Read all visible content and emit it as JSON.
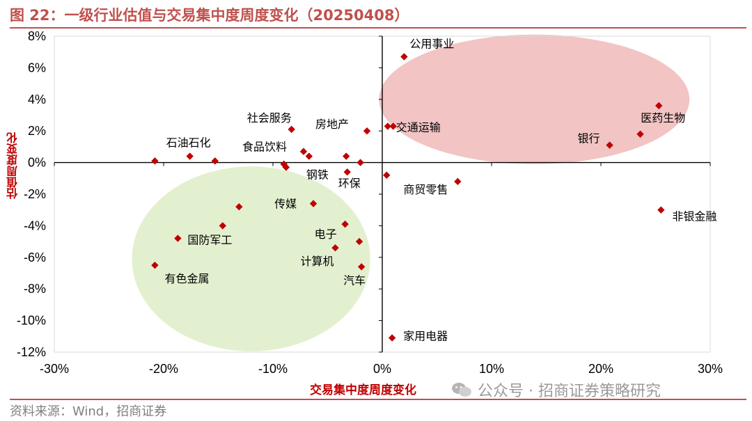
{
  "header": {
    "title": "图 22：一级行业估值与交易集中度周度变化（20250408）",
    "title_color": "#c0504d",
    "rule_color": "#c0504d"
  },
  "footer": {
    "source": "资料来源：Wind，招商证券",
    "watermark_text": "公众号 · 招商证券策略研究",
    "watermark_icon": "wechat-icon"
  },
  "chart_data": {
    "type": "scatter",
    "xlabel": "交易集中度周度变化",
    "ylabel": "估值周度变化",
    "xlim": [
      -0.3,
      0.3
    ],
    "ylim": [
      -0.12,
      0.08
    ],
    "x_ticks": [
      -0.3,
      -0.2,
      -0.1,
      0,
      0.1,
      0.2,
      0.3
    ],
    "x_tick_labels": [
      "-30%",
      "-20%",
      "-10%",
      "0%",
      "10%",
      "20%",
      "30%"
    ],
    "y_ticks": [
      0.08,
      0.06,
      0.04,
      0.02,
      0,
      -0.02,
      -0.04,
      -0.06,
      -0.08,
      -0.1,
      -0.12
    ],
    "y_tick_labels": [
      "8%",
      "6%",
      "4%",
      "2%",
      "0%",
      "-2%",
      "-4%",
      "-6%",
      "-8%",
      "-10%",
      "-12%"
    ],
    "grid": false,
    "legend": "none",
    "marker_color": "#c00000",
    "label_color_axis": "#c00000",
    "highlight_regions": [
      {
        "name": "upper-right-cluster",
        "color": "#f2c4c4",
        "center": [
          0.139,
          0.04
        ],
        "radius": [
          0.142,
          0.041
        ]
      },
      {
        "name": "lower-left-cluster",
        "color": "#e3f0cf",
        "center": [
          -0.12,
          -0.061
        ],
        "radius": [
          0.109,
          0.0585
        ]
      }
    ],
    "points": [
      {
        "x": 0.02,
        "y": 0.067,
        "label": "公用事业"
      },
      {
        "x": 0.253,
        "y": 0.036,
        "label": "医药生物"
      },
      {
        "x": 0.236,
        "y": 0.018,
        "label": ""
      },
      {
        "x": 0.208,
        "y": 0.011,
        "label": "银行"
      },
      {
        "x": 0.255,
        "y": -0.03,
        "label": "非银金融"
      },
      {
        "x": 0.005,
        "y": 0.023,
        "label": ""
      },
      {
        "x": 0.01,
        "y": 0.023,
        "label": "交通运输"
      },
      {
        "x": -0.014,
        "y": 0.02,
        "label": "房地产"
      },
      {
        "x": -0.083,
        "y": 0.021,
        "label": "社会服务"
      },
      {
        "x": -0.072,
        "y": 0.007,
        "label": "食品饮料"
      },
      {
        "x": -0.067,
        "y": 0.004,
        "label": ""
      },
      {
        "x": -0.033,
        "y": 0.004,
        "label": ""
      },
      {
        "x": -0.02,
        "y": 0.0,
        "label": ""
      },
      {
        "x": -0.09,
        "y": -0.001,
        "label": ""
      },
      {
        "x": -0.088,
        "y": -0.003,
        "label": "钢铁"
      },
      {
        "x": -0.032,
        "y": -0.006,
        "label": "环保"
      },
      {
        "x": -0.208,
        "y": 0.001,
        "label": ""
      },
      {
        "x": -0.176,
        "y": 0.004,
        "label": "石油石化"
      },
      {
        "x": -0.153,
        "y": 0.001,
        "label": ""
      },
      {
        "x": 0.004,
        "y": -0.008,
        "label": ""
      },
      {
        "x": 0.069,
        "y": -0.012,
        "label": "商贸零售"
      },
      {
        "x": -0.063,
        "y": -0.026,
        "label": "传媒"
      },
      {
        "x": -0.131,
        "y": -0.028,
        "label": ""
      },
      {
        "x": -0.146,
        "y": -0.04,
        "label": ""
      },
      {
        "x": -0.187,
        "y": -0.048,
        "label": "国防军工"
      },
      {
        "x": -0.034,
        "y": -0.039,
        "label": "电子"
      },
      {
        "x": -0.021,
        "y": -0.05,
        "label": ""
      },
      {
        "x": -0.043,
        "y": -0.054,
        "label": "计算机"
      },
      {
        "x": -0.208,
        "y": -0.065,
        "label": "有色金属"
      },
      {
        "x": -0.019,
        "y": -0.066,
        "label": "汽车"
      },
      {
        "x": 0.009,
        "y": -0.111,
        "label": "家用电器"
      }
    ]
  }
}
